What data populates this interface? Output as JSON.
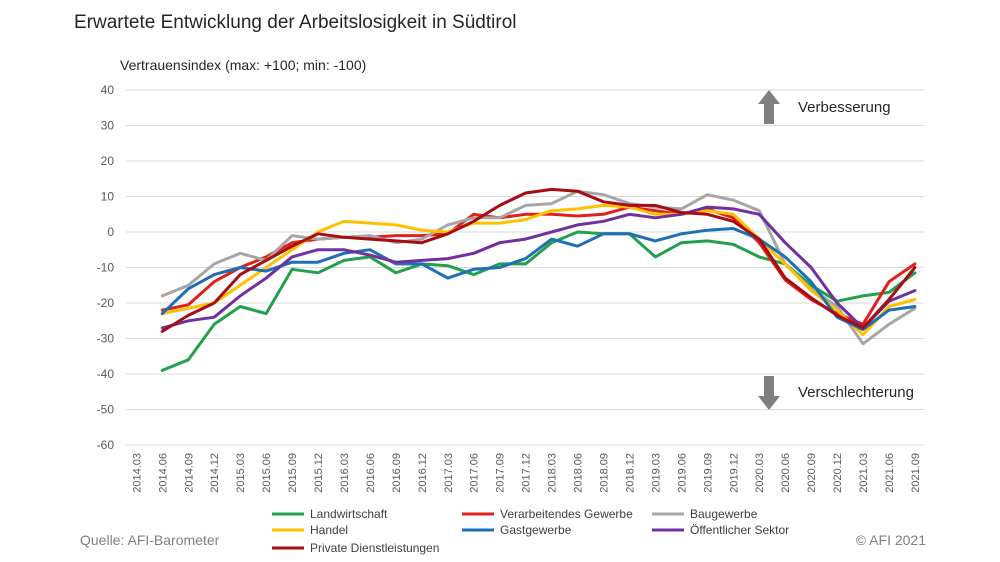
{
  "title": "Erwartete Entwicklung der Arbeitslosigkeit in Südtirol",
  "footer": {
    "source": "Quelle: AFI-Barometer",
    "copyright": "© AFI 2021"
  },
  "annotations": {
    "up_label": "Verbesserung",
    "down_label": "Verschlechterung"
  },
  "chart_data": {
    "type": "line",
    "ylabel": "Vertrauensindex (max: +100; min: -100)",
    "ylim": [
      -60,
      40
    ],
    "yticks": [
      -60,
      -50,
      -40,
      -30,
      -20,
      -10,
      0,
      10,
      20,
      30,
      40
    ],
    "grid": true,
    "legend_position": "bottom",
    "x": [
      "2014.03",
      "2014.06",
      "2014.09",
      "2014.12",
      "2015.03",
      "2015.06",
      "2015.09",
      "2015.12",
      "2016.03",
      "2016.06",
      "2016.09",
      "2016.12",
      "2017.03",
      "2017.06",
      "2017.09",
      "2017.12",
      "2018.03",
      "2018.06",
      "2018.09",
      "2018.12",
      "2019.03",
      "2019.06",
      "2019.09",
      "2019.12",
      "2020.03",
      "2020.06",
      "2020.09",
      "2020.12",
      "2021.03",
      "2021.06",
      "2021.09"
    ],
    "series": [
      {
        "name": "Landwirtschaft",
        "color": "#22a04b",
        "values": [
          null,
          -39,
          -36,
          -26,
          -21,
          -23,
          -10.5,
          -11.5,
          -8,
          -7,
          -11.5,
          -9,
          -9.5,
          -12,
          -9,
          -9,
          -3,
          0,
          -0.5,
          -0.5,
          -7,
          -3,
          -2.5,
          -3.5,
          -7,
          -9,
          -15,
          -19.5,
          -18,
          -17,
          -11.5
        ]
      },
      {
        "name": "Verarbeitendes Gewerbe",
        "color": "#e0201b",
        "values": [
          null,
          -22,
          -20.5,
          -14,
          -10,
          -7,
          -3,
          -2,
          -1.5,
          -1.5,
          -1,
          -1,
          -0.5,
          5,
          4,
          5,
          5,
          4.5,
          5,
          7,
          6,
          5,
          6.5,
          4,
          -3,
          -13.5,
          -19,
          -23,
          -26,
          -14,
          -9
        ]
      },
      {
        "name": "Baugewerbe",
        "color": "#a6a6a6",
        "values": [
          null,
          -18,
          -15,
          -9,
          -6,
          -8,
          -1,
          -2,
          -1.5,
          -1,
          -3,
          -2,
          2,
          4,
          4,
          7.5,
          8,
          11.5,
          10.5,
          8,
          7,
          6.5,
          10.5,
          9,
          6,
          -9,
          -16,
          -21,
          -31.5,
          -26,
          -21.5
        ]
      },
      {
        "name": "Handel",
        "color": "#ffc000",
        "values": [
          null,
          -23,
          -21.5,
          -20,
          -15,
          -10,
          -5,
          0,
          3,
          2.5,
          2,
          0.5,
          0,
          2.5,
          2.5,
          3.5,
          6,
          6.5,
          7.5,
          7,
          5,
          5,
          6,
          5,
          -2,
          -9,
          -16.5,
          -22,
          -29,
          -21,
          -19
        ]
      },
      {
        "name": "Gastgewerbe",
        "color": "#1f6fb4",
        "values": [
          null,
          -23,
          -16,
          -12,
          -10,
          -11,
          -8.5,
          -8.5,
          -6,
          -5,
          -9,
          -9,
          -13,
          -10.5,
          -10,
          -7.5,
          -2,
          -4,
          -0.5,
          -0.5,
          -2.5,
          -0.5,
          0.5,
          1,
          -2,
          -7,
          -14,
          -24,
          -27.5,
          -22,
          -21
        ]
      },
      {
        "name": "Öffentlicher Sektor",
        "color": "#7030a0",
        "values": [
          null,
          -27,
          -25,
          -24,
          -18,
          -13,
          -7,
          -5,
          -5,
          -6.5,
          -8.5,
          -8,
          -7.5,
          -6,
          -3,
          -2,
          0,
          2,
          3,
          5,
          4,
          5,
          7,
          6.5,
          5,
          -3,
          -10,
          -20,
          -27,
          -19.5,
          -16.5
        ]
      },
      {
        "name": "Private Dienstleistungen",
        "color": "#a50d14",
        "values": [
          null,
          -28,
          -23.5,
          -20,
          -12,
          -8,
          -4,
          -0.5,
          -1.5,
          -2,
          -2.5,
          -3,
          -0.5,
          3,
          7.5,
          11,
          12,
          11.5,
          8.5,
          7.5,
          7.5,
          5.5,
          5,
          3,
          -2,
          -13,
          -18.5,
          -23.5,
          -27,
          -19,
          -10
        ]
      }
    ]
  }
}
